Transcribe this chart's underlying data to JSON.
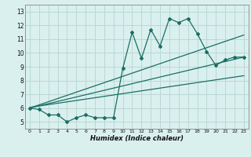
{
  "title": "",
  "xlabel": "Humidex (Indice chaleur)",
  "bg_color": "#daf0ee",
  "grid_color": "#b8d8d5",
  "line_color": "#1a6e65",
  "xlim": [
    -0.5,
    23.5
  ],
  "ylim": [
    4.5,
    13.5
  ],
  "xticks": [
    0,
    1,
    2,
    3,
    4,
    5,
    6,
    7,
    8,
    9,
    10,
    11,
    12,
    13,
    14,
    15,
    16,
    17,
    18,
    19,
    20,
    21,
    22,
    23
  ],
  "yticks": [
    5,
    6,
    7,
    8,
    9,
    10,
    11,
    12,
    13
  ],
  "data_line": {
    "x": [
      0,
      1,
      2,
      3,
      4,
      5,
      6,
      7,
      8,
      9,
      10,
      11,
      12,
      13,
      14,
      15,
      16,
      17,
      18,
      19,
      20,
      21,
      22,
      23
    ],
    "y": [
      6.0,
      5.9,
      5.5,
      5.5,
      5.0,
      5.3,
      5.5,
      5.3,
      5.3,
      5.3,
      8.9,
      11.5,
      9.6,
      11.7,
      10.5,
      12.5,
      12.2,
      12.5,
      11.4,
      10.1,
      9.1,
      9.5,
      9.7,
      9.7
    ]
  },
  "reg_line1": {
    "x": [
      0,
      23
    ],
    "y": [
      6.0,
      11.3
    ]
  },
  "reg_line2": {
    "x": [
      0,
      23
    ],
    "y": [
      6.0,
      9.7
    ]
  },
  "reg_line3": {
    "x": [
      0,
      23
    ],
    "y": [
      6.05,
      8.35
    ]
  }
}
